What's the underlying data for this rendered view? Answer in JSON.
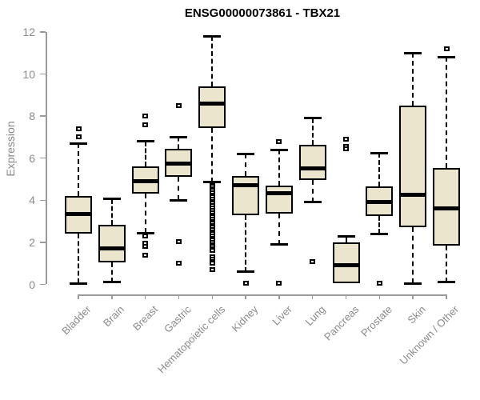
{
  "title": "ENSG00000073861 - TBX21",
  "chart_data": {
    "type": "boxplot",
    "title": "ENSG00000073861 - TBX21",
    "xlabel": "",
    "ylabel": "Expression",
    "ylim": [
      0,
      12
    ],
    "yticks": [
      0,
      2,
      4,
      6,
      8,
      10,
      12
    ],
    "grid": false,
    "legend": null,
    "colors": {
      "box_fill": "#ece5cd",
      "box_border": "#000000",
      "median": "#000000",
      "whisker": "#000000",
      "axis": "#9a9a9a",
      "tick_label": "#8b8b8b",
      "title": "#000000"
    },
    "categories": [
      "Bladder",
      "Brain",
      "Breast",
      "Gastric",
      "Hematopoietic cells",
      "Kidney",
      "Liver",
      "Lung",
      "Pancreas",
      "Prostate",
      "Skin",
      "Unknown / Other"
    ],
    "series": [
      {
        "name": "Bladder",
        "whisker_low": 0.05,
        "q1": 2.4,
        "median": 3.35,
        "q3": 4.2,
        "whisker_high": 6.7,
        "outliers": [
          7.4,
          7.0
        ]
      },
      {
        "name": "Brain",
        "whisker_low": 0.1,
        "q1": 1.05,
        "median": 1.7,
        "q3": 2.85,
        "whisker_high": 4.05,
        "outliers": []
      },
      {
        "name": "Breast",
        "whisker_low": 2.45,
        "q1": 4.3,
        "median": 4.9,
        "q3": 5.6,
        "whisker_high": 6.8,
        "outliers": [
          8.0,
          7.6,
          2.3,
          1.95,
          1.8,
          1.4
        ]
      },
      {
        "name": "Gastric",
        "whisker_low": 4.0,
        "q1": 5.1,
        "median": 5.75,
        "q3": 6.45,
        "whisker_high": 7.0,
        "outliers": [
          8.5,
          2.05,
          1.0
        ]
      },
      {
        "name": "Hematopoietic cells",
        "whisker_low": 4.85,
        "q1": 7.45,
        "median": 8.6,
        "q3": 9.4,
        "whisker_high": 11.8,
        "outliers": [
          4.75,
          4.65,
          4.55,
          4.45,
          4.35,
          4.25,
          4.15,
          4.05,
          3.95,
          3.85,
          3.75,
          3.65,
          3.5,
          3.4,
          3.3,
          3.2,
          3.1,
          3.0,
          2.9,
          2.8,
          2.7,
          2.6,
          2.5,
          2.4,
          2.3,
          2.2,
          2.1,
          2.0,
          1.9,
          1.8,
          1.7,
          1.6,
          1.3,
          1.2,
          1.1,
          1.0,
          0.7
        ]
      },
      {
        "name": "Kidney",
        "whisker_low": 0.6,
        "q1": 3.3,
        "median": 4.7,
        "q3": 5.15,
        "whisker_high": 6.2,
        "outliers": [
          0.05
        ]
      },
      {
        "name": "Liver",
        "whisker_low": 1.9,
        "q1": 3.35,
        "median": 4.35,
        "q3": 4.7,
        "whisker_high": 6.4,
        "outliers": [
          6.8,
          0.05
        ]
      },
      {
        "name": "Lung",
        "whisker_low": 3.9,
        "q1": 4.95,
        "median": 5.5,
        "q3": 6.65,
        "whisker_high": 7.9,
        "outliers": [
          1.1
        ]
      },
      {
        "name": "Pancreas",
        "whisker_low": 0.05,
        "q1": 0.05,
        "median": 0.9,
        "q3": 2.0,
        "whisker_high": 2.3,
        "outliers": [
          6.9,
          6.55,
          6.45
        ]
      },
      {
        "name": "Prostate",
        "whisker_low": 2.4,
        "q1": 3.25,
        "median": 3.9,
        "q3": 4.65,
        "whisker_high": 6.25,
        "outliers": [
          0.05
        ]
      },
      {
        "name": "Skin",
        "whisker_low": 0.05,
        "q1": 2.7,
        "median": 4.25,
        "q3": 8.5,
        "whisker_high": 11.0,
        "outliers": []
      },
      {
        "name": "Unknown / Other",
        "whisker_low": 0.1,
        "q1": 1.85,
        "median": 3.6,
        "q3": 5.55,
        "whisker_high": 10.8,
        "outliers": [
          11.2
        ]
      }
    ]
  }
}
